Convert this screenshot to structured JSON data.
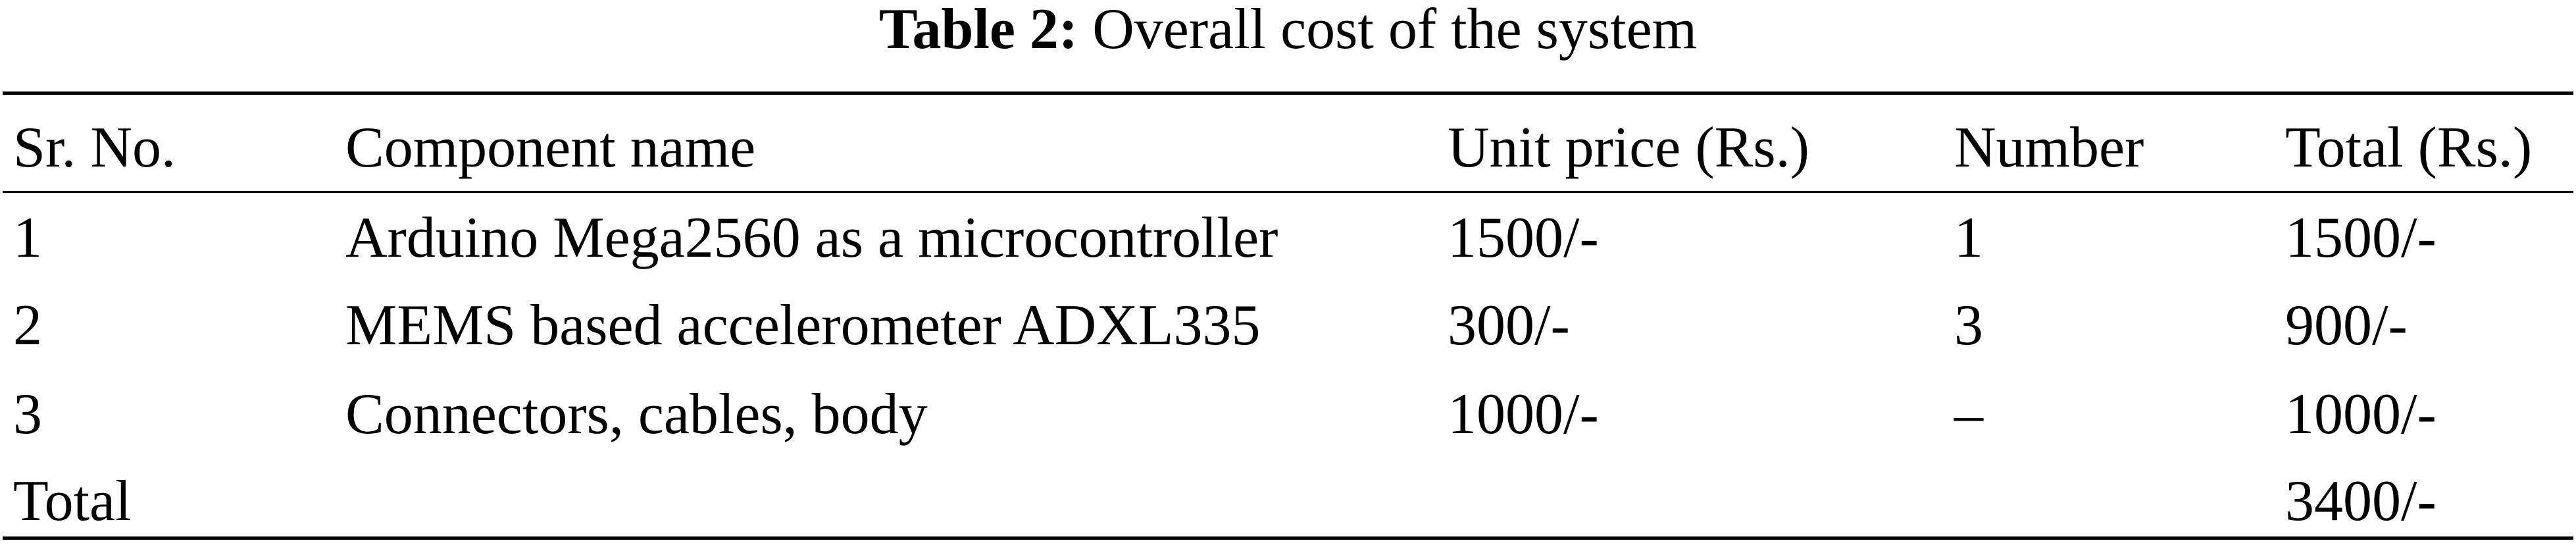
{
  "caption": {
    "label": "Table 2:",
    "text": "Overall cost of the system"
  },
  "table": {
    "headers": [
      "Sr. No.",
      "Component name",
      "Unit price (Rs.)",
      "Number",
      "Total (Rs.)"
    ],
    "rows": [
      [
        "1",
        "Arduino Mega2560 as a microcontroller",
        "1500/-",
        "1",
        "1500/-"
      ],
      [
        "2",
        "MEMS based accelerometer ADXL335",
        "300/-",
        "3",
        "900/-"
      ],
      [
        "3",
        "Connectors, cables, body",
        "1000/-",
        "–",
        "1000/-"
      ]
    ],
    "total": {
      "label": "Total",
      "value": "3400/-"
    }
  }
}
